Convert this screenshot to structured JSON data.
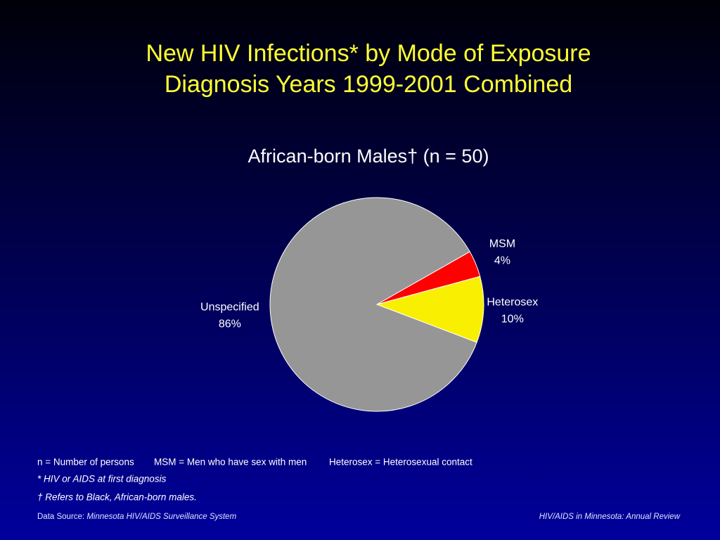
{
  "chart_data": {
    "type": "pie",
    "title": [
      "New HIV Infections* by Mode of Exposure",
      "Diagnosis Years 1999-2001 Combined"
    ],
    "subtitle": "African-born Males† (n = 50)",
    "categories": [
      "MSM",
      "Heterosex",
      "Unspecified"
    ],
    "values": [
      4,
      10,
      86
    ],
    "value_labels": [
      "4%",
      "10%",
      "86%"
    ],
    "colors": [
      "#ff0000",
      "#f8f000",
      "#969696"
    ]
  },
  "notes": {
    "definitions": [
      "n = Number of persons",
      "MSM = Men who have sex with men",
      "Heterosex = Heterosexual contact"
    ],
    "footnotes": [
      "* HIV or AIDS at first diagnosis",
      "† Refers to Black, African-born males."
    ]
  },
  "footer": {
    "source_label": "Data Source:",
    "source": "Minnesota HIV/AIDS Surveillance System",
    "right": "HIV/AIDS in Minnesota: Annual Review"
  }
}
